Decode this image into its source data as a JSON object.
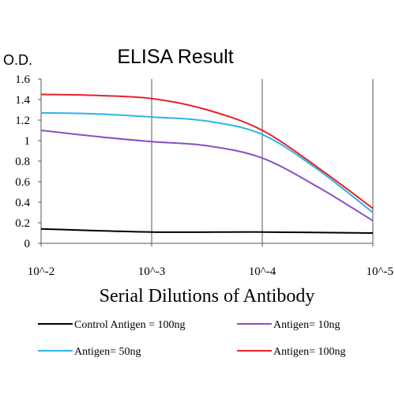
{
  "chart_data": {
    "type": "line",
    "title": "ELISA Result",
    "ylabel": "O.D.",
    "xlabel": "Serial Dilutions of Antibody",
    "x_ticks": [
      "10^-2",
      "10^-3",
      "10^-4",
      "10^-5"
    ],
    "x_scale": "log",
    "ylim": [
      0,
      1.6
    ],
    "y_ticks": [
      "0",
      "0.2",
      "0.4",
      "0.6",
      "0.8",
      "1",
      "1.2",
      "1.4",
      "1.6"
    ],
    "grid": "vertical",
    "legend_placement": "bottom",
    "series": [
      {
        "name": "Control Antigen = 100ng",
        "color": "#000000",
        "points": [
          [
            0,
            0.14
          ],
          [
            1,
            0.11
          ],
          [
            2,
            0.11
          ],
          [
            3,
            0.1
          ]
        ]
      },
      {
        "name": "Antigen= 10ng",
        "color": "#8a4fc7",
        "points": [
          [
            0,
            1.1
          ],
          [
            0.5,
            1.04
          ],
          [
            1,
            0.99
          ],
          [
            1.5,
            0.95
          ],
          [
            2,
            0.83
          ],
          [
            2.5,
            0.55
          ],
          [
            3,
            0.22
          ]
        ]
      },
      {
        "name": "Antigen= 50ng",
        "color": "#2eb4e8",
        "points": [
          [
            0,
            1.27
          ],
          [
            0.5,
            1.26
          ],
          [
            1,
            1.23
          ],
          [
            1.5,
            1.19
          ],
          [
            2,
            1.06
          ],
          [
            2.5,
            0.72
          ],
          [
            3,
            0.3
          ]
        ]
      },
      {
        "name": "Antigen= 100ng",
        "color": "#e8202a",
        "points": [
          [
            0,
            1.45
          ],
          [
            0.5,
            1.44
          ],
          [
            1,
            1.41
          ],
          [
            1.5,
            1.3
          ],
          [
            2,
            1.1
          ],
          [
            2.5,
            0.74
          ],
          [
            3,
            0.34
          ]
        ]
      }
    ]
  }
}
